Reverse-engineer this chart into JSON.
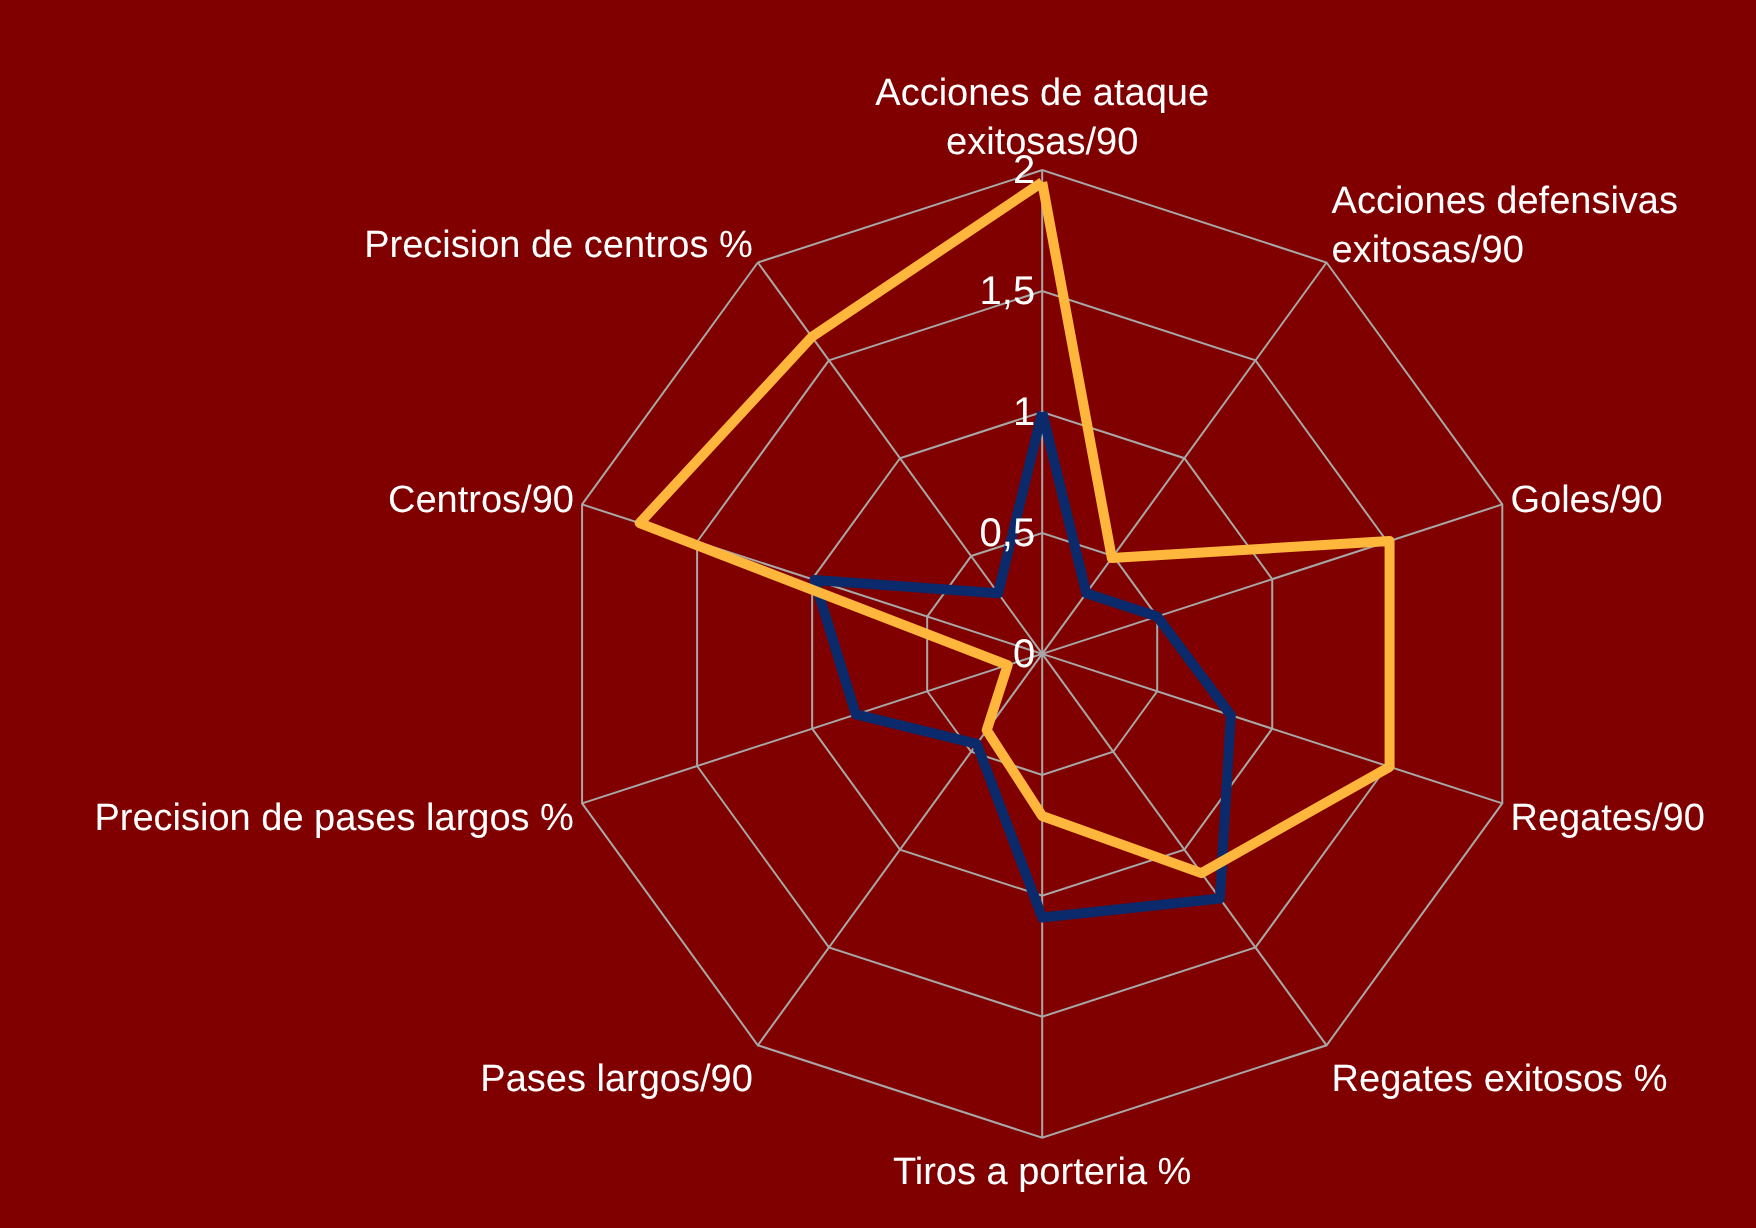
{
  "chart_data": {
    "type": "radar",
    "categories": [
      "Acciones de ataque\nexitosas/90",
      "Acciones defensivas\nexitosas/90",
      "Goles/90",
      "Regates/90",
      "Regates exitosos %",
      "Tiros a porteria %",
      "Pases largos/90",
      "Precision de pases largos %",
      "Centros/90",
      "Precision de centros %"
    ],
    "series": [
      {
        "color": "#0b2a6b",
        "values": [
          1.0,
          0.31,
          0.5,
          0.82,
          1.25,
          1.09,
          0.46,
          0.81,
          0.99,
          0.31
        ]
      },
      {
        "color": "#ffb63c",
        "values": [
          1.95,
          0.49,
          1.51,
          1.51,
          1.12,
          0.67,
          0.39,
          0.15,
          1.75,
          1.62
        ]
      }
    ],
    "ylim": [
      0,
      2
    ],
    "yticks": [
      0,
      {
        "value": 0.5,
        "label": "0,5"
      },
      1,
      {
        "value": 1.5,
        "label": "1,5"
      },
      2
    ],
    "grid": true,
    "marker": "none",
    "line_style": "solid"
  }
}
